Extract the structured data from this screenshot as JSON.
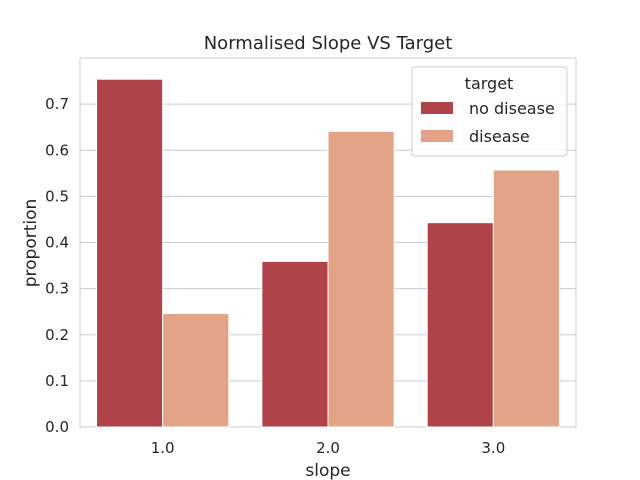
{
  "chart_data": {
    "type": "bar",
    "title": "Normalised Slope VS Target",
    "xlabel": "slope",
    "ylabel": "proportion",
    "categories": [
      "1.0",
      "2.0",
      "3.0"
    ],
    "ylim": [
      0,
      0.8
    ],
    "yticks": [
      "0.0",
      "0.1",
      "0.2",
      "0.3",
      "0.4",
      "0.5",
      "0.6",
      "0.7"
    ],
    "grid": "horizontal",
    "legend": {
      "title": "target",
      "placement": "top-right"
    },
    "series": [
      {
        "name": "no disease",
        "color": "#b0424a",
        "values": [
          0.754,
          0.359,
          0.443
        ]
      },
      {
        "name": "disease",
        "color": "#e3a387",
        "values": [
          0.246,
          0.641,
          0.557
        ]
      }
    ]
  }
}
